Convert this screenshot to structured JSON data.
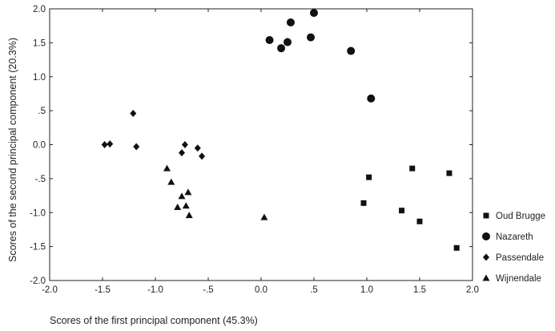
{
  "chart_data": {
    "type": "scatter",
    "xlabel": "Scores of the first principal component (45.3%)",
    "ylabel": "Scores of the second principal component (20.3%)",
    "xlim": [
      -2.0,
      2.0
    ],
    "ylim": [
      -2.0,
      2.0
    ],
    "x_ticks": [
      -2.0,
      -1.5,
      -1.0,
      -0.5,
      0.0,
      0.5,
      1.0,
      1.5,
      2.0
    ],
    "x_tick_labels": [
      "-2.0",
      "-1.5",
      "-1.0",
      "-.5",
      "0.0",
      ".5",
      "1.0",
      "1.5",
      "2.0"
    ],
    "y_ticks": [
      2.0,
      1.5,
      1.0,
      0.5,
      0.0,
      -0.5,
      -1.0,
      -1.5,
      -2.0
    ],
    "y_tick_labels": [
      "2.0",
      "1.5",
      "1.0",
      ".5",
      "0.0",
      "-.5",
      "-1.0",
      "-1.5",
      "-2.0"
    ],
    "grid": false,
    "legend_position": "right",
    "marker_color": "#111111",
    "series": [
      {
        "name": "Oud Brugge",
        "marker": "square",
        "points": [
          [
            1.02,
            -0.48
          ],
          [
            0.97,
            -0.86
          ],
          [
            1.33,
            -0.97
          ],
          [
            1.43,
            -0.35
          ],
          [
            1.5,
            -1.13
          ],
          [
            1.78,
            -0.42
          ],
          [
            1.85,
            -1.52
          ]
        ]
      },
      {
        "name": "Nazareth",
        "marker": "circle",
        "points": [
          [
            0.08,
            1.54
          ],
          [
            0.19,
            1.42
          ],
          [
            0.25,
            1.51
          ],
          [
            0.28,
            1.8
          ],
          [
            0.47,
            1.58
          ],
          [
            0.5,
            1.94
          ],
          [
            0.85,
            1.38
          ],
          [
            1.04,
            0.68
          ]
        ]
      },
      {
        "name": "Passendale",
        "marker": "diamond",
        "points": [
          [
            -1.48,
            0.0
          ],
          [
            -1.43,
            0.01
          ],
          [
            -1.21,
            0.46
          ],
          [
            -1.18,
            -0.03
          ],
          [
            -0.75,
            -0.12
          ],
          [
            -0.72,
            0.0
          ],
          [
            -0.6,
            -0.05
          ],
          [
            -0.56,
            -0.17
          ]
        ]
      },
      {
        "name": "Wijnendale",
        "marker": "triangle",
        "points": [
          [
            -0.89,
            -0.35
          ],
          [
            -0.85,
            -0.55
          ],
          [
            -0.79,
            -0.92
          ],
          [
            -0.75,
            -0.76
          ],
          [
            -0.71,
            -0.9
          ],
          [
            -0.69,
            -0.7
          ],
          [
            -0.68,
            -1.04
          ],
          [
            0.03,
            -1.07
          ]
        ]
      }
    ]
  }
}
